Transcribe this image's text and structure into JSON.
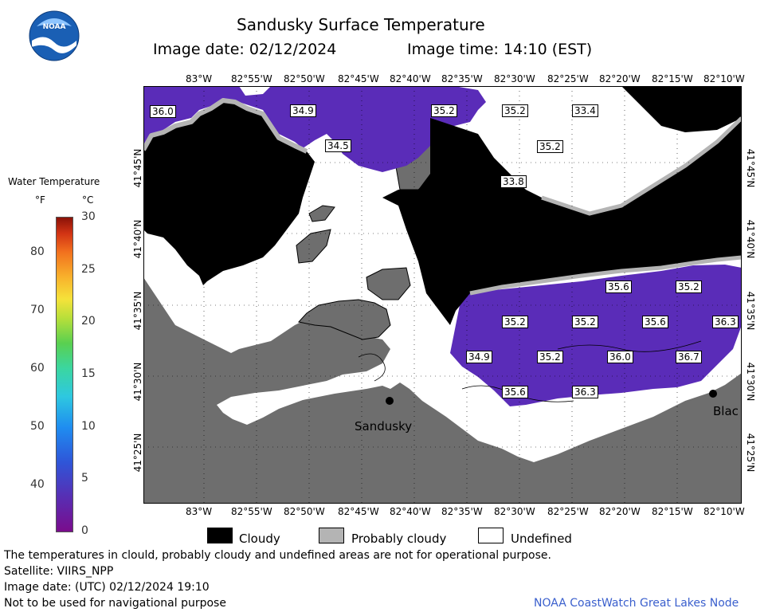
{
  "header": {
    "title": "Sandusky Surface Temperature",
    "image_date": "Image date: 02/12/2024",
    "image_time": "Image time: 14:10 (EST)"
  },
  "logo_text": "NOAA",
  "colorbar": {
    "title": "Water Temperature",
    "unit_f": "°F",
    "unit_c": "°C",
    "f_ticks": [
      "80",
      "70",
      "60",
      "50",
      "40"
    ],
    "c_ticks": [
      "30",
      "25",
      "20",
      "15",
      "10",
      "5",
      "0"
    ],
    "f_range": [
      32,
      86
    ],
    "c_range": [
      0,
      30
    ]
  },
  "axes": {
    "lon_labels": [
      "83°W",
      "82°55'W",
      "82°50'W",
      "82°45'W",
      "82°40'W",
      "82°35'W",
      "82°30'W",
      "82°25'W",
      "82°20'W",
      "82°15'W",
      "82°10'W"
    ],
    "lat_labels": [
      "41°45'N",
      "41°40'N",
      "41°35'N",
      "41°30'N",
      "41°25'N"
    ]
  },
  "temperature_labels": [
    "36.0",
    "34.9",
    "35.2",
    "35.2",
    "33.4",
    "34.5",
    "35.2",
    "33.8",
    "35.6",
    "35.2",
    "35.2",
    "35.2",
    "35.6",
    "36.3",
    "34.9",
    "35.2",
    "36.0",
    "36.7",
    "35.6",
    "36.3"
  ],
  "places": {
    "sandusky": "Sandusky",
    "blac": "Blac"
  },
  "legend": {
    "cloudy": "Cloudy",
    "probably_cloudy": "Probably cloudy",
    "undefined": "Undefined"
  },
  "colors": {
    "land": "#6e6e6e",
    "cloud": "#000000",
    "probably_cloudy": "#b4b4b4",
    "undefined": "#ffffff",
    "water_36F": "#5a2cb8",
    "credit_blue": "#3a5fcd"
  },
  "footer": {
    "disclaimer": "The temperatures in clould, probably cloudy and undefined areas are not for operational purpose.",
    "satellite": "Satellite: VIIRS_NPP",
    "utc_date": "Image date: (UTC) 02/12/2024  19:10",
    "nav_warning": "Not to be used for navigational purpose",
    "credit": "NOAA CoastWatch Great Lakes Node"
  }
}
